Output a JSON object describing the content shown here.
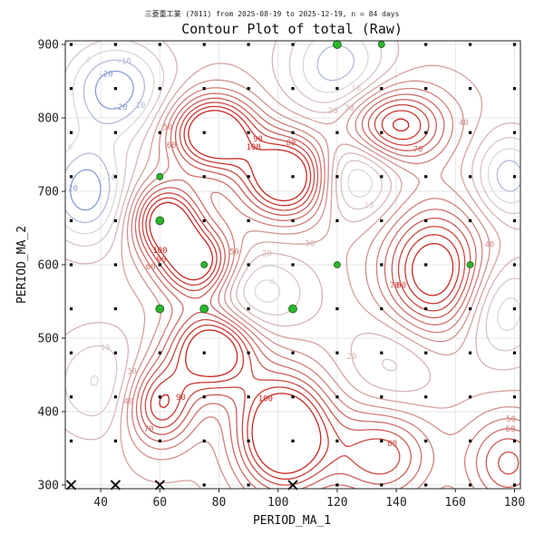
{
  "chart_data": {
    "type": "contour",
    "subtitle": "三菱重工業 (7011) from 2025-08-19 to 2025-12-19, n = 84 days",
    "title": "Contour Plot of total (Raw)",
    "xlabel": "PERIOD_MA_1",
    "ylabel": "PERIOD_MA_2",
    "xlim": [
      28,
      182
    ],
    "ylim": [
      295,
      905
    ],
    "xticks": [
      40,
      60,
      80,
      100,
      120,
      140,
      160,
      180
    ],
    "yticks": [
      300,
      400,
      500,
      600,
      700,
      800,
      900
    ],
    "grid_x": [
      30,
      45,
      60,
      75,
      90,
      105,
      120,
      135,
      150,
      165,
      180
    ],
    "grid_y": [
      300,
      360,
      420,
      480,
      540,
      600,
      660,
      720,
      780,
      840,
      900
    ],
    "contour_levels": [
      -40,
      -30,
      -20,
      -10,
      0,
      10,
      20,
      30,
      40,
      50,
      60,
      70,
      80,
      90,
      100
    ],
    "hills": [
      {
        "x": 45,
        "y": 840,
        "amp": -55,
        "sx": 12,
        "sy": 45
      },
      {
        "x": 120,
        "y": 870,
        "amp": -45,
        "sx": 12,
        "sy": 50
      },
      {
        "x": 35,
        "y": 700,
        "amp": -55,
        "sx": 10,
        "sy": 50
      },
      {
        "x": 125,
        "y": 720,
        "amp": -50,
        "sx": 10,
        "sy": 40
      },
      {
        "x": 90,
        "y": 560,
        "amp": -40,
        "sx": 14,
        "sy": 40
      },
      {
        "x": 175,
        "y": 540,
        "amp": -40,
        "sx": 10,
        "sy": 50
      },
      {
        "x": 178,
        "y": 720,
        "amp": -45,
        "sx": 8,
        "sy": 40
      },
      {
        "x": 40,
        "y": 440,
        "amp": -30,
        "sx": 12,
        "sy": 50
      },
      {
        "x": 140,
        "y": 470,
        "amp": -25,
        "sx": 12,
        "sy": 50
      },
      {
        "x": 78,
        "y": 780,
        "amp": 105,
        "sx": 10,
        "sy": 35
      },
      {
        "x": 103,
        "y": 720,
        "amp": 105,
        "sx": 11,
        "sy": 40
      },
      {
        "x": 140,
        "y": 790,
        "amp": 80,
        "sx": 12,
        "sy": 35
      },
      {
        "x": 62,
        "y": 660,
        "amp": 90,
        "sx": 8,
        "sy": 35
      },
      {
        "x": 73,
        "y": 600,
        "amp": 95,
        "sx": 9,
        "sy": 35
      },
      {
        "x": 153,
        "y": 590,
        "amp": 90,
        "sx": 12,
        "sy": 60
      },
      {
        "x": 78,
        "y": 485,
        "amp": 100,
        "sx": 10,
        "sy": 40
      },
      {
        "x": 102,
        "y": 370,
        "amp": 115,
        "sx": 11,
        "sy": 55
      },
      {
        "x": 60,
        "y": 410,
        "amp": 75,
        "sx": 8,
        "sy": 40
      },
      {
        "x": 135,
        "y": 340,
        "amp": 60,
        "sx": 12,
        "sy": 45
      },
      {
        "x": 178,
        "y": 330,
        "amp": 55,
        "sx": 10,
        "sy": 45
      }
    ],
    "best_points": [
      {
        "x": 120,
        "y": 900
      },
      {
        "x": 135,
        "y": 900
      },
      {
        "x": 60,
        "y": 720
      },
      {
        "x": 60,
        "y": 660
      },
      {
        "x": 75,
        "y": 600
      },
      {
        "x": 120,
        "y": 600
      },
      {
        "x": 165,
        "y": 600
      },
      {
        "x": 60,
        "y": 540
      },
      {
        "x": 75,
        "y": 540
      },
      {
        "x": 105,
        "y": 540
      }
    ],
    "worst_points": [
      {
        "x": 30,
        "y": 300
      },
      {
        "x": 45,
        "y": 300
      },
      {
        "x": 60,
        "y": 300
      },
      {
        "x": 105,
        "y": 300
      }
    ],
    "colors": {
      "negative": "#3b5fd4",
      "positive": "#c8261f",
      "zero": "#d9d9d9",
      "best_fill": "#2db52d",
      "best_stroke": "#1a5c1a",
      "worst": "#111111",
      "grid": "#e6e6e6",
      "sample": "#000000"
    }
  }
}
